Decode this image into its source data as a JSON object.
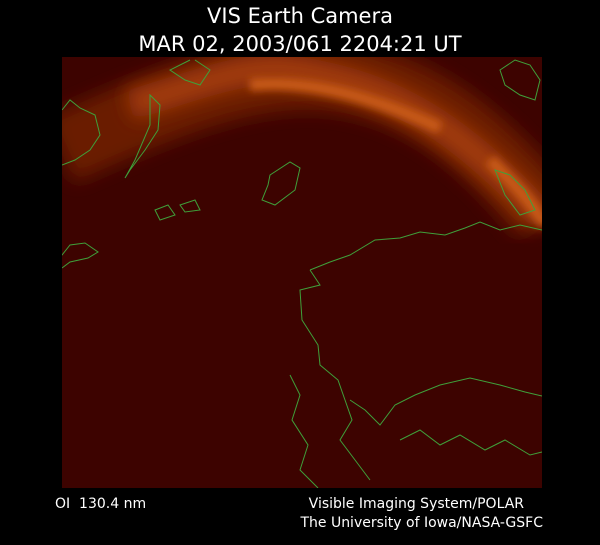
{
  "header": {
    "title": "VIS Earth Camera",
    "timestamp": "MAR 02, 2003/061 2204:21 UT"
  },
  "footer": {
    "wavelength": "OI  130.4 nm",
    "credit_lines": [
      "Visible Imaging System/POLAR",
      "The University of Iowa/NASA-GSFC"
    ]
  }
}
